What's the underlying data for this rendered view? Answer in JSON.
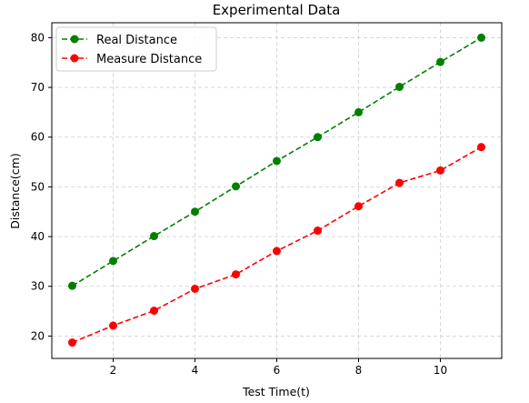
{
  "chart_data": {
    "type": "line",
    "title": "Experimental Data",
    "xlabel": "Test Time(t)",
    "ylabel": "Distance(cm)",
    "xlim": [
      0.5,
      11.5
    ],
    "ylim": [
      15.5,
      83
    ],
    "xticks": [
      2,
      4,
      6,
      8,
      10
    ],
    "yticks": [
      20,
      30,
      40,
      50,
      60,
      70,
      80
    ],
    "grid": true,
    "legend_position": "upper-left",
    "x": [
      1,
      2,
      3,
      4,
      5,
      6,
      7,
      8,
      9,
      10,
      11
    ],
    "series": [
      {
        "name": "Real Distance",
        "color": "#008000",
        "line_style": "dashed",
        "marker": "circle",
        "values": [
          30.1,
          35.1,
          40.1,
          45.0,
          50.1,
          55.2,
          60.0,
          65.0,
          70.1,
          75.1,
          80.0
        ]
      },
      {
        "name": "Measure Distance",
        "color": "#ff0000",
        "line_style": "dashed",
        "marker": "circle",
        "values": [
          18.7,
          22.1,
          25.1,
          29.5,
          32.4,
          37.1,
          41.2,
          46.1,
          50.8,
          53.3,
          58.0
        ]
      }
    ]
  }
}
